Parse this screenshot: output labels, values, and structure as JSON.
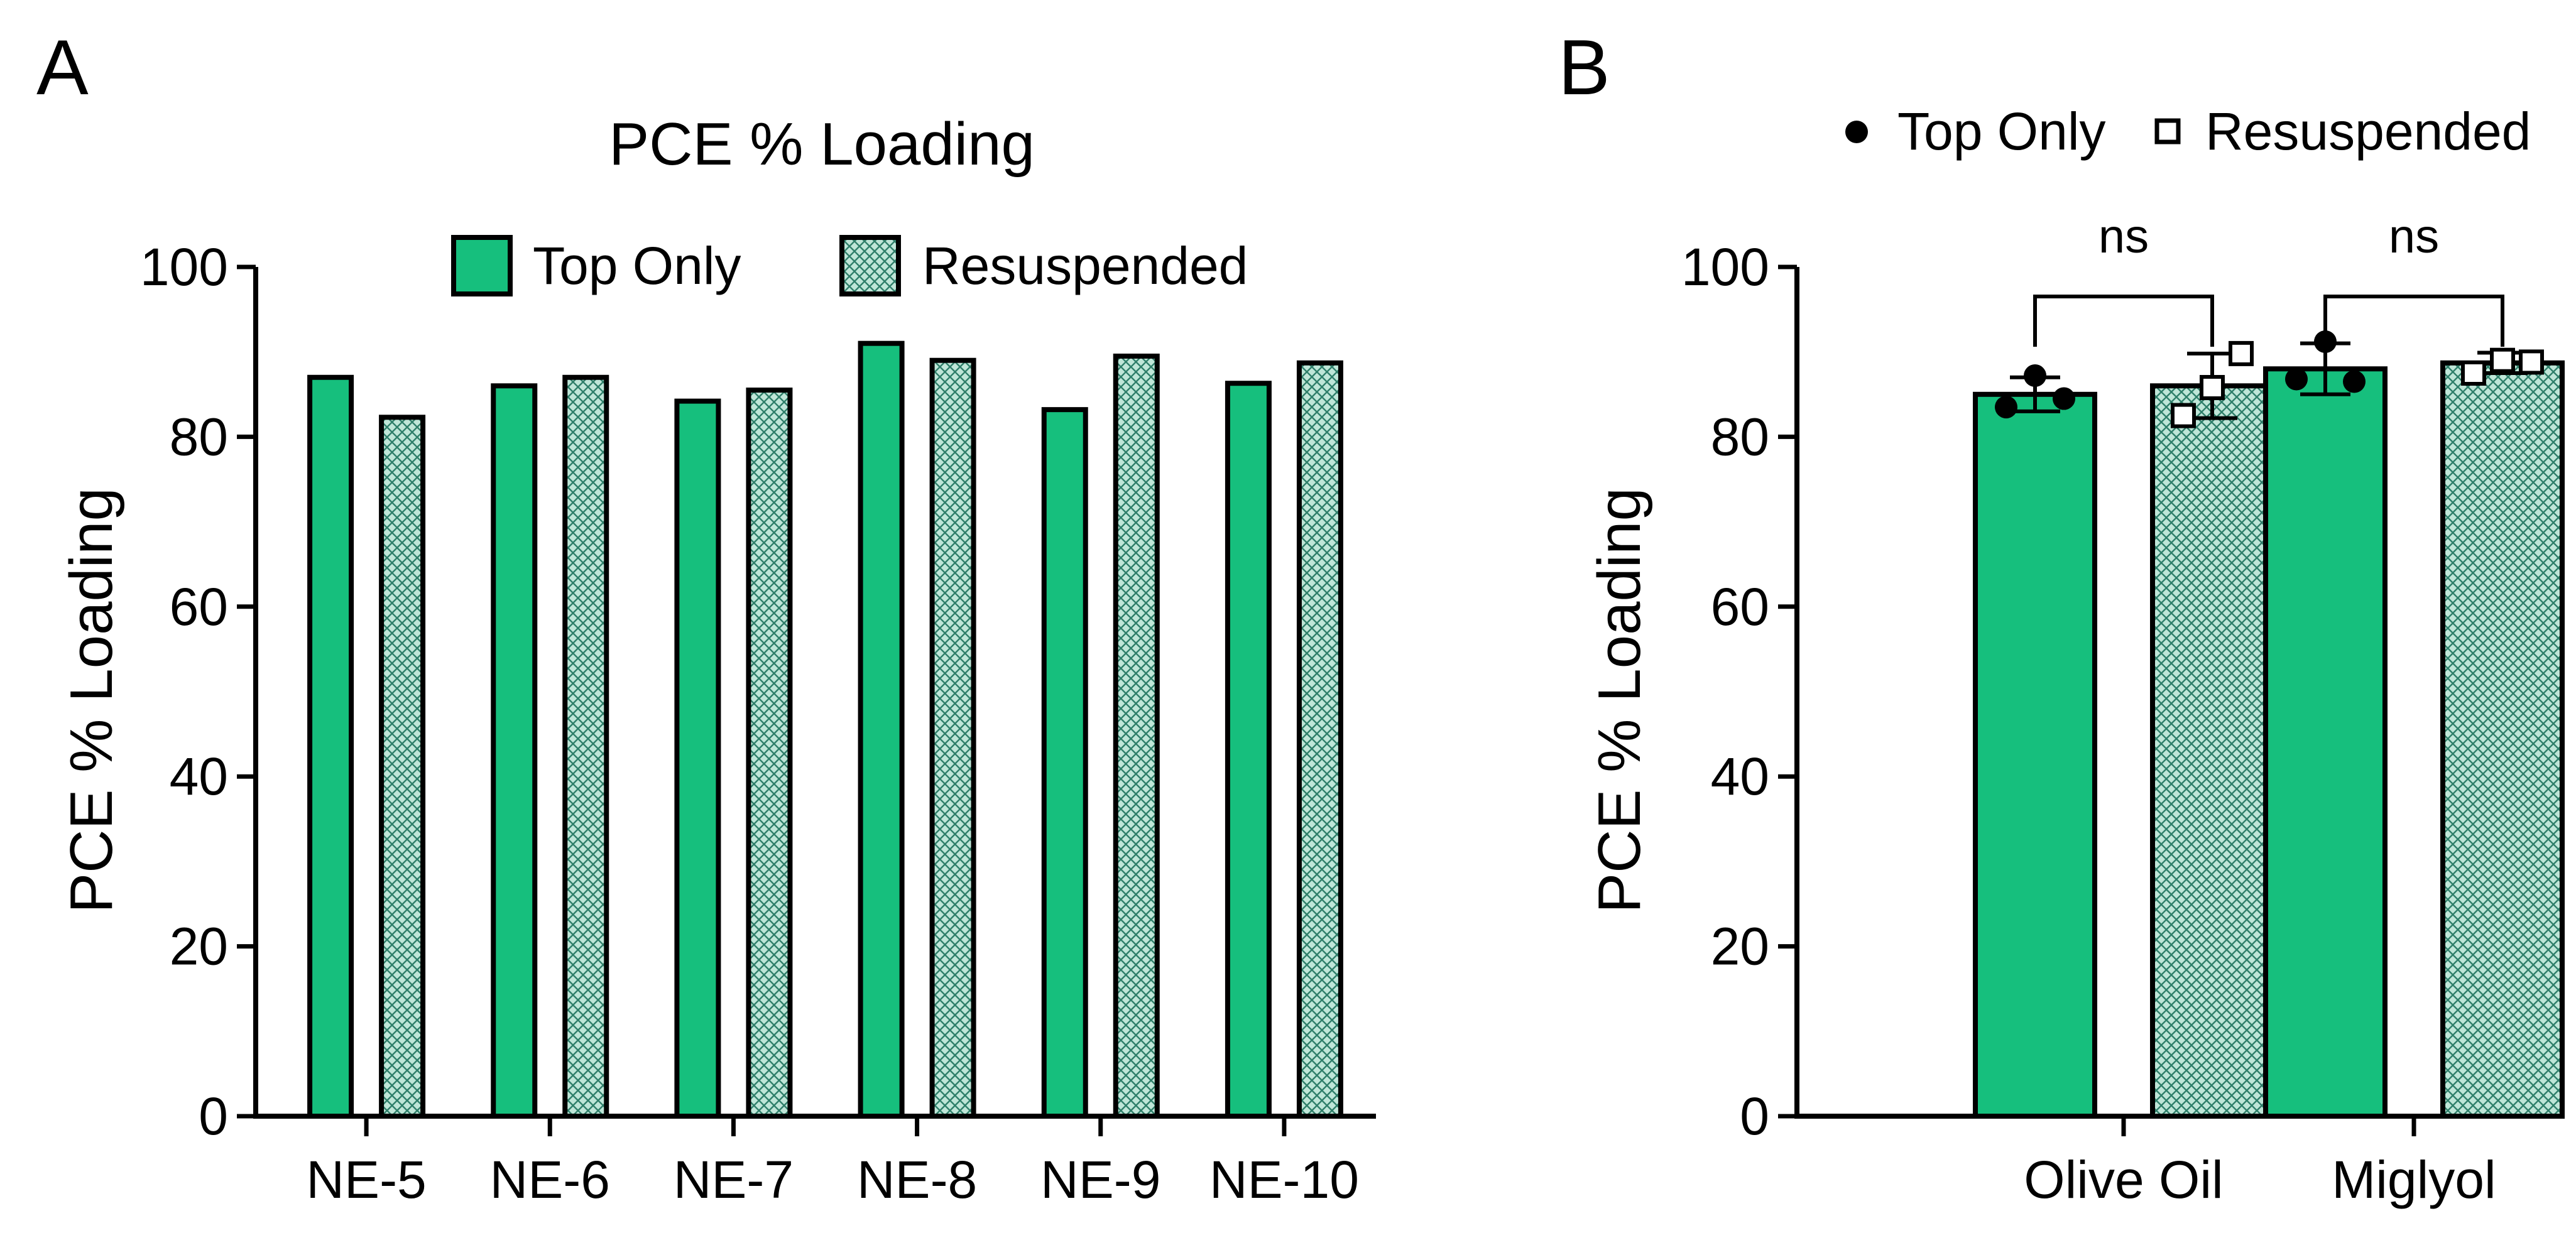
{
  "colors": {
    "bar_fill": "#16bf7d",
    "hatch_bg": "#bfe6d8",
    "hatch_fg": "#2f7f6a",
    "stroke": "#000000"
  },
  "chart_data": [
    {
      "panel": "A",
      "type": "bar",
      "title": "PCE % Loading",
      "xlabel": "",
      "ylabel": "PCE % Loading",
      "ylim": [
        0,
        100
      ],
      "yticks": [
        0,
        20,
        40,
        60,
        80,
        100
      ],
      "categories": [
        "NE-5",
        "NE-6",
        "NE-7",
        "NE-8",
        "NE-9",
        "NE-10"
      ],
      "series": [
        {
          "name": "Top Only",
          "pattern": "solid",
          "values": [
            87,
            86,
            84.2,
            91,
            83.2,
            86.3
          ]
        },
        {
          "name": "Resuspended",
          "pattern": "hatch",
          "values": [
            82.3,
            87,
            85.5,
            89,
            89.5,
            88.7
          ]
        }
      ],
      "legend": {
        "placement": "top-center",
        "entries": [
          "Top Only",
          "Resuspended"
        ]
      }
    },
    {
      "panel": "B",
      "type": "bar",
      "title": "",
      "xlabel": "",
      "ylabel": "PCE % Loading",
      "ylim": [
        0,
        100
      ],
      "yticks": [
        0,
        20,
        40,
        60,
        80,
        100
      ],
      "categories": [
        "Olive Oil",
        "Miglyol"
      ],
      "series": [
        {
          "name": "Top Only",
          "pattern": "solid",
          "marker": "filled-circle",
          "values": [
            85,
            88
          ],
          "error": [
            2,
            3
          ],
          "points": [
            [
              83.5,
              87.2,
              84.5
            ],
            [
              86.8,
              91.2,
              86.5
            ]
          ]
        },
        {
          "name": "Resuspended",
          "pattern": "hatch",
          "marker": "open-square",
          "values": [
            86,
            88.7
          ],
          "error": [
            3.8,
            1.2
          ],
          "points": [
            [
              82.5,
              85.8,
              89.8
            ],
            [
              87.5,
              89,
              88.8
            ]
          ]
        }
      ],
      "significance": [
        "ns",
        "ns"
      ],
      "legend": {
        "placement": "top",
        "entries": [
          "Top Only",
          "Resuspended"
        ]
      }
    }
  ]
}
